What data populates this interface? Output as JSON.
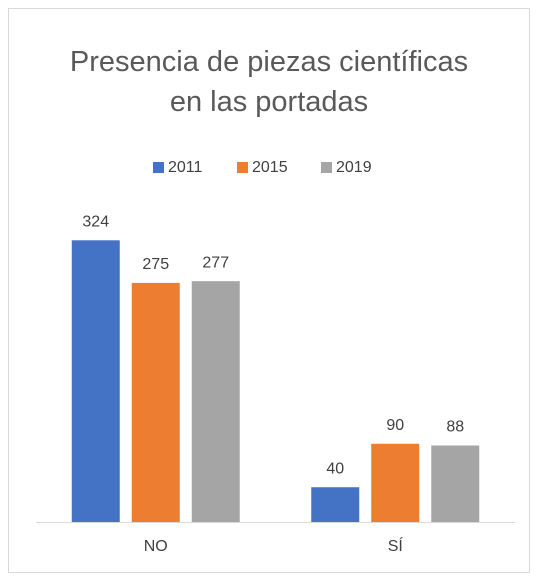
{
  "chart_data": {
    "type": "bar",
    "title": "Presencia de piezas científicas en las portadas",
    "categories": [
      "NO",
      "SÍ"
    ],
    "series": [
      {
        "name": "2011",
        "color": "#4472c4",
        "values": [
          324,
          40
        ]
      },
      {
        "name": "2015",
        "color": "#ed7d31",
        "values": [
          275,
          90
        ]
      },
      {
        "name": "2019",
        "color": "#a5a5a5",
        "values": [
          277,
          88
        ]
      }
    ],
    "ylim": [
      0,
      360
    ],
    "legend": "top",
    "data_labels": true
  }
}
